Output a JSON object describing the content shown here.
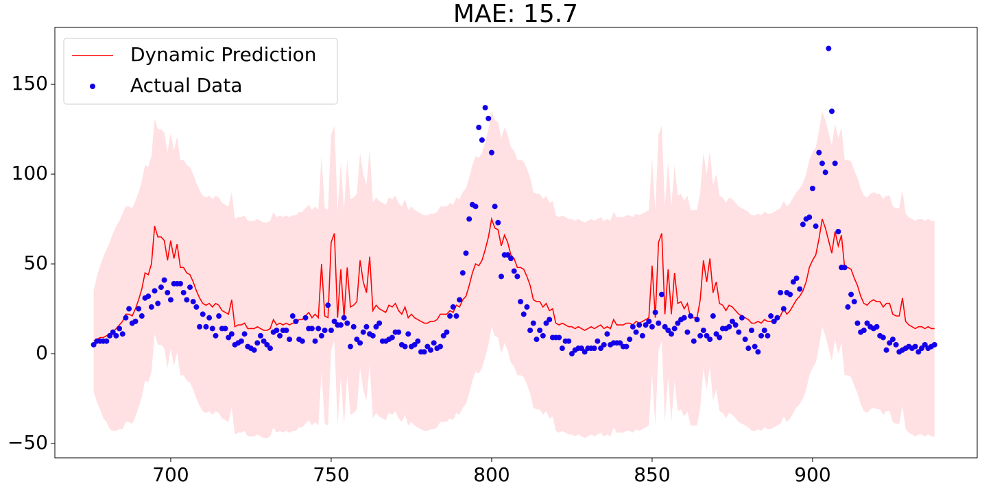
{
  "chart_data": {
    "type": "line",
    "title": "MAE: 15.7",
    "x": [
      676,
      677,
      678,
      679,
      680,
      681,
      682,
      683,
      684,
      685,
      686,
      687,
      688,
      689,
      690,
      691,
      692,
      693,
      694,
      695,
      696,
      697,
      698,
      699,
      700,
      701,
      702,
      703,
      704,
      705,
      706,
      707,
      708,
      709,
      710,
      711,
      712,
      713,
      714,
      715,
      716,
      717,
      718,
      719,
      720,
      721,
      722,
      723,
      724,
      725,
      726,
      727,
      728,
      729,
      730,
      731,
      732,
      733,
      734,
      735,
      736,
      737,
      738,
      739,
      740,
      741,
      742,
      743,
      744,
      745,
      746,
      747,
      748,
      749,
      750,
      751,
      752,
      753,
      754,
      755,
      756,
      757,
      758,
      759,
      760,
      761,
      762,
      763,
      764,
      765,
      766,
      767,
      768,
      769,
      770,
      771,
      772,
      773,
      774,
      775,
      776,
      777,
      778,
      779,
      780,
      781,
      782,
      783,
      784,
      785,
      786,
      787,
      788,
      789,
      790,
      791,
      792,
      793,
      794,
      795,
      796,
      797,
      798,
      799,
      800,
      801,
      802,
      803,
      804,
      805,
      806,
      807,
      808,
      809,
      810,
      811,
      812,
      813,
      814,
      815,
      816,
      817,
      818,
      819,
      820,
      821,
      822,
      823,
      824,
      825,
      826,
      827,
      828,
      829,
      830,
      831,
      832,
      833,
      834,
      835,
      836,
      837,
      838,
      839,
      840,
      841,
      842,
      843,
      844,
      845,
      846,
      847,
      848,
      849,
      850,
      851,
      852,
      853,
      854,
      855,
      856,
      857,
      858,
      859,
      860,
      861,
      862,
      863,
      864,
      865,
      866,
      867,
      868,
      869,
      870,
      871,
      872,
      873,
      874,
      875,
      876,
      877,
      878,
      879,
      880,
      881,
      882,
      883,
      884,
      885,
      886,
      887,
      888,
      889,
      890,
      891,
      892,
      893,
      894,
      895,
      896,
      897,
      898,
      899,
      900,
      901,
      902,
      903,
      904,
      905,
      906,
      907,
      908,
      909,
      910,
      911,
      912,
      913,
      914,
      915,
      916,
      917,
      918,
      919,
      920,
      921,
      922,
      923,
      924,
      925,
      926,
      927,
      928,
      929,
      930,
      931,
      932,
      933,
      934,
      935,
      936,
      937,
      938
    ],
    "series": [
      {
        "name": "Dynamic Prediction",
        "color": "#ff0000",
        "values": [
          7,
          8,
          9,
          9,
          10,
          10,
          12,
          14,
          16,
          18,
          22,
          22,
          21,
          25,
          30,
          36,
          45,
          44,
          50,
          71,
          65,
          65,
          63,
          52,
          63,
          53,
          61,
          48,
          48,
          45,
          44,
          40,
          35,
          31,
          28,
          27,
          28,
          26,
          28,
          27,
          24,
          23,
          22,
          30,
          15,
          16,
          16,
          17,
          14,
          14,
          14,
          15,
          14,
          13,
          13,
          14,
          19,
          16,
          17,
          16,
          17,
          16,
          17,
          17,
          19,
          19,
          21,
          23,
          20,
          22,
          20,
          50,
          21,
          20,
          62,
          67,
          20,
          47,
          20,
          48,
          26,
          27,
          29,
          52,
          40,
          34,
          54,
          24,
          27,
          25,
          24,
          23,
          27,
          26,
          28,
          24,
          22,
          26,
          20,
          22,
          20,
          19,
          18,
          17,
          17,
          18,
          18,
          19,
          22,
          22,
          22,
          24,
          23,
          27,
          26,
          30,
          32,
          38,
          45,
          50,
          49,
          52,
          58,
          65,
          75,
          70,
          69,
          60,
          66,
          62,
          55,
          53,
          48,
          48,
          47,
          43,
          38,
          30,
          29,
          29,
          26,
          28,
          24,
          25,
          17,
          16,
          17,
          16,
          15,
          15,
          14,
          15,
          14,
          13,
          14,
          15,
          14,
          15,
          16,
          14,
          15,
          14,
          19,
          16,
          16,
          16,
          17,
          17,
          16,
          18,
          17,
          18,
          19,
          20,
          49,
          20,
          62,
          67,
          22,
          47,
          22,
          45,
          28,
          29,
          25,
          28,
          20,
          20,
          20,
          30,
          52,
          40,
          53,
          34,
          40,
          28,
          27,
          24,
          27,
          26,
          24,
          22,
          21,
          20,
          19,
          17,
          17,
          18,
          17,
          19,
          18,
          18,
          19,
          20,
          21,
          25,
          22,
          24,
          27,
          30,
          32,
          35,
          40,
          48,
          52,
          55,
          64,
          75,
          70,
          63,
          56,
          68,
          60,
          66,
          48,
          48,
          47,
          42,
          38,
          32,
          28,
          27,
          29,
          30,
          29,
          29,
          26,
          28,
          28,
          22,
          21,
          21,
          31,
          18,
          16,
          15,
          14,
          15,
          15,
          14,
          15,
          14,
          14
        ]
      },
      {
        "name": "Actual Data",
        "color": "#1400e8",
        "values": [
          5,
          7,
          7,
          7,
          7,
          10,
          12,
          10,
          14,
          11,
          20,
          25,
          17,
          18,
          25,
          21,
          31,
          32,
          26,
          35,
          28,
          37,
          41,
          34,
          30,
          39,
          39,
          39,
          34,
          30,
          37,
          29,
          26,
          15,
          22,
          15,
          20,
          14,
          10,
          21,
          14,
          14,
          9,
          11,
          5,
          6,
          7,
          11,
          4,
          3,
          2,
          6,
          10,
          7,
          5,
          3,
          12,
          13,
          10,
          13,
          13,
          8,
          21,
          18,
          8,
          7,
          20,
          14,
          14,
          7,
          14,
          10,
          13,
          27,
          13,
          18,
          16,
          16,
          20,
          17,
          4,
          15,
          8,
          6,
          12,
          15,
          11,
          10,
          15,
          17,
          7,
          7,
          8,
          9,
          12,
          12,
          5,
          4,
          11,
          4,
          5,
          7,
          1,
          1,
          4,
          2,
          6,
          3,
          4,
          10,
          12,
          21,
          26,
          21,
          30,
          45,
          56,
          75,
          83,
          82,
          126,
          119,
          137,
          131,
          112,
          82,
          73,
          43,
          55,
          55,
          53,
          46,
          43,
          29,
          22,
          26,
          13,
          17,
          8,
          13,
          10,
          17,
          19,
          9,
          9,
          9,
          3,
          7,
          7,
          0,
          2,
          3,
          3,
          1,
          3,
          3,
          3,
          7,
          3,
          5,
          11,
          5,
          6,
          6,
          6,
          4,
          4,
          8,
          15,
          12,
          16,
          10,
          16,
          18,
          15,
          23,
          17,
          33,
          15,
          13,
          11,
          14,
          17,
          19,
          20,
          12,
          21,
          7,
          19,
          10,
          13,
          10,
          8,
          21,
          11,
          9,
          14,
          14,
          15,
          18,
          16,
          12,
          20,
          8,
          3,
          13,
          4,
          1,
          10,
          13,
          10,
          21,
          18,
          20,
          34,
          25,
          34,
          33,
          40,
          42,
          36,
          72,
          75,
          76,
          92,
          71,
          112,
          106,
          101,
          170,
          135,
          106,
          68,
          48,
          48,
          26,
          33,
          29,
          17,
          12,
          13,
          17,
          15,
          14,
          15,
          10,
          9,
          2,
          6,
          8,
          5,
          1,
          2,
          3,
          4,
          3,
          4,
          1,
          3,
          5,
          3,
          4,
          5
        ]
      }
    ],
    "band": {
      "color": "#ffe0e3",
      "upper": [
        35,
        43,
        49,
        54,
        58,
        62,
        67,
        71,
        74,
        78,
        82,
        82,
        81,
        85,
        90,
        96,
        105,
        104,
        110,
        131,
        125,
        125,
        123,
        112,
        123,
        113,
        121,
        108,
        108,
        105,
        104,
        100,
        95,
        91,
        88,
        87,
        88,
        86,
        88,
        87,
        84,
        83,
        82,
        90,
        75,
        76,
        76,
        77,
        74,
        74,
        74,
        75,
        74,
        73,
        73,
        74,
        79,
        76,
        77,
        76,
        77,
        76,
        77,
        77,
        79,
        79,
        81,
        83,
        80,
        82,
        80,
        110,
        81,
        80,
        122,
        127,
        80,
        107,
        80,
        108,
        86,
        87,
        89,
        112,
        100,
        94,
        114,
        84,
        87,
        85,
        84,
        83,
        87,
        86,
        88,
        84,
        82,
        86,
        80,
        82,
        80,
        79,
        78,
        77,
        77,
        78,
        78,
        79,
        82,
        82,
        82,
        84,
        83,
        87,
        86,
        90,
        92,
        98,
        105,
        110,
        109,
        112,
        118,
        125,
        135,
        130,
        129,
        120,
        126,
        122,
        115,
        113,
        108,
        108,
        107,
        103,
        98,
        90,
        89,
        89,
        86,
        88,
        84,
        85,
        77,
        76,
        77,
        76,
        75,
        75,
        74,
        75,
        74,
        73,
        74,
        75,
        74,
        75,
        76,
        74,
        75,
        74,
        79,
        76,
        76,
        76,
        77,
        77,
        76,
        78,
        77,
        78,
        79,
        80,
        109,
        80,
        122,
        127,
        82,
        107,
        82,
        105,
        88,
        89,
        85,
        88,
        80,
        80,
        80,
        90,
        112,
        100,
        113,
        94,
        100,
        88,
        87,
        84,
        87,
        86,
        84,
        82,
        81,
        80,
        79,
        77,
        77,
        78,
        77,
        79,
        78,
        78,
        79,
        80,
        81,
        85,
        82,
        84,
        87,
        90,
        92,
        95,
        100,
        108,
        112,
        115,
        124,
        135,
        130,
        123,
        116,
        128,
        120,
        126,
        108,
        108,
        107,
        102,
        98,
        92,
        88,
        87,
        89,
        90,
        89,
        89,
        86,
        88,
        88,
        82,
        81,
        81,
        91,
        78,
        76,
        75,
        74,
        75,
        75,
        74,
        75,
        74,
        74
      ],
      "lower": [
        -21,
        -27,
        -31,
        -36,
        -38,
        -42,
        -43,
        -43,
        -42,
        -42,
        -38,
        -38,
        -39,
        -35,
        -30,
        -24,
        -15,
        -16,
        -10,
        11,
        5,
        5,
        3,
        -8,
        3,
        -7,
        1,
        -12,
        -12,
        -15,
        -16,
        -20,
        -25,
        -29,
        -32,
        -33,
        -32,
        -34,
        -32,
        -33,
        -36,
        -37,
        -38,
        -30,
        -45,
        -44,
        -44,
        -43,
        -46,
        -46,
        -46,
        -45,
        -46,
        -47,
        -47,
        -46,
        -41,
        -44,
        -43,
        -44,
        -43,
        -44,
        -43,
        -43,
        -41,
        -41,
        -39,
        -37,
        -40,
        -38,
        -40,
        -10,
        -39,
        -40,
        2,
        7,
        -40,
        -13,
        -40,
        -12,
        -34,
        -33,
        -31,
        -8,
        -20,
        -26,
        -6,
        -36,
        -33,
        -35,
        -36,
        -37,
        -33,
        -34,
        -32,
        -36,
        -38,
        -34,
        -40,
        -38,
        -40,
        -41,
        -42,
        -43,
        -43,
        -42,
        -42,
        -41,
        -38,
        -38,
        -38,
        -36,
        -37,
        -33,
        -34,
        -30,
        -28,
        -22,
        -15,
        -10,
        -11,
        -8,
        -2,
        5,
        15,
        10,
        9,
        0,
        6,
        2,
        -5,
        -7,
        -12,
        -12,
        -13,
        -17,
        -22,
        -30,
        -31,
        -31,
        -34,
        -32,
        -36,
        -35,
        -43,
        -44,
        -43,
        -44,
        -45,
        -45,
        -46,
        -45,
        -46,
        -47,
        -46,
        -45,
        -46,
        -45,
        -44,
        -46,
        -45,
        -46,
        -41,
        -44,
        -44,
        -44,
        -43,
        -43,
        -44,
        -42,
        -43,
        -42,
        -41,
        -40,
        -11,
        -40,
        2,
        7,
        -38,
        -13,
        -38,
        -15,
        -32,
        -31,
        -35,
        -32,
        -40,
        -40,
        -40,
        -30,
        -8,
        -20,
        -7,
        -26,
        -20,
        -32,
        -33,
        -36,
        -33,
        -34,
        -36,
        -38,
        -39,
        -40,
        -41,
        -43,
        -43,
        -42,
        -43,
        -41,
        -42,
        -42,
        -41,
        -40,
        -39,
        -35,
        -38,
        -36,
        -33,
        -30,
        -28,
        -25,
        -20,
        -12,
        -8,
        -5,
        4,
        15,
        10,
        3,
        -4,
        8,
        0,
        6,
        -12,
        -12,
        -13,
        -18,
        -22,
        -28,
        -32,
        -33,
        -31,
        -30,
        -31,
        -31,
        -34,
        -32,
        -32,
        -38,
        -39,
        -39,
        -29,
        -42,
        -44,
        -45,
        -46,
        -45,
        -45,
        -46,
        -45,
        -46,
        -46
      ]
    },
    "xlim": [
      663.9,
      951.3
    ],
    "ylim": [
      -58,
      181.7
    ],
    "xticks": [
      700,
      750,
      800,
      850,
      900
    ],
    "yticks": [
      {
        "value": -50,
        "label": "−50"
      },
      0,
      50,
      100,
      150
    ],
    "grid": false,
    "legend": "upper left"
  }
}
